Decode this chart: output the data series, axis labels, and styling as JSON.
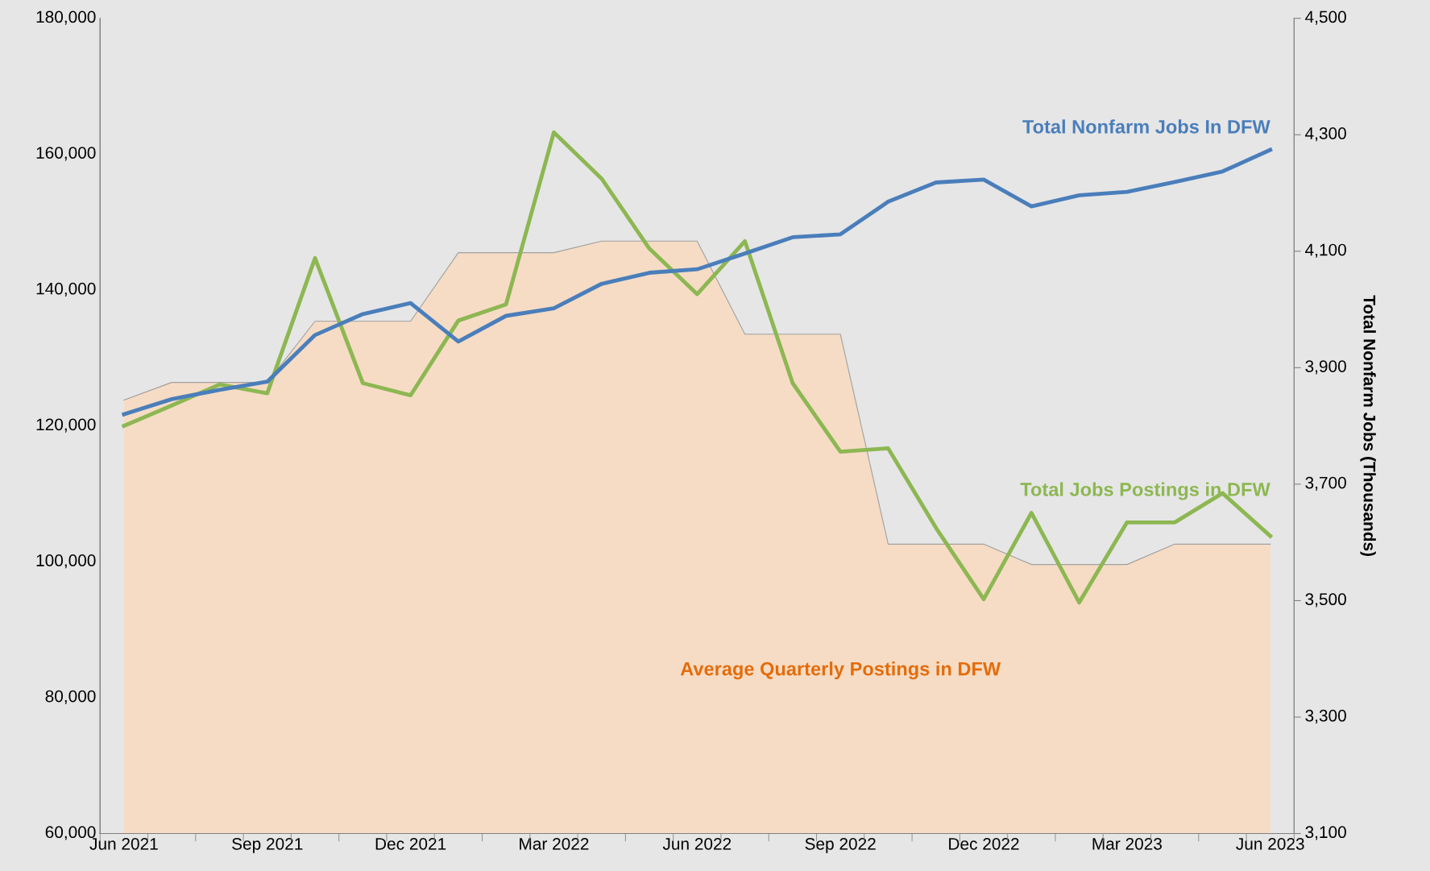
{
  "chart_data": {
    "type": "line",
    "y2label": "Total Nonfarm Jobs (Thousands)",
    "categories": [
      "Jun 2021",
      null,
      null,
      "Sep 2021",
      null,
      null,
      "Dec 2021",
      null,
      null,
      "Mar 2022",
      null,
      null,
      "Jun 2022",
      null,
      null,
      "Sep 2022",
      null,
      null,
      "Dec 2022",
      null,
      null,
      "Mar 2023",
      null,
      null,
      "Jun 2023"
    ],
    "series": [
      {
        "name": "Average Quarterly Postings in DFW",
        "type": "area",
        "color": "#f6dcc5",
        "values": [
          123800,
          126400,
          126400,
          126400,
          135400,
          135400,
          135400,
          145500,
          145500,
          145500,
          147200,
          147200,
          147200,
          133500,
          133500,
          133500,
          102600,
          102600,
          102600,
          99600,
          99600,
          99600,
          102600,
          102600,
          102600
        ]
      },
      {
        "name": "Total Jobs Postings in DFW",
        "color": "#8db752",
        "values": [
          120000,
          123000,
          126100,
          124800,
          144700,
          126300,
          124500,
          135500,
          137900,
          163200,
          156400,
          146100,
          139400,
          147200,
          126300,
          116200,
          116700,
          105000,
          94500,
          107200,
          94000,
          105800,
          105800,
          110100,
          103800
        ]
      },
      {
        "name": "Total Nonfarm Jobs In DFW",
        "axis": "y2",
        "color": "#4a7ebb",
        "values": [
          3820,
          3846,
          3862,
          3876,
          3956,
          3992,
          4011,
          3945,
          3989,
          4002,
          4044,
          4063,
          4069,
          4096,
          4124,
          4129,
          4185,
          4218,
          4223,
          4177,
          4196,
          4202,
          4219,
          4237,
          4274
        ]
      }
    ],
    "ylim": [
      60000,
      180000
    ],
    "yticks": [
      {
        "value": 60000,
        "label": "60,000"
      },
      {
        "value": 80000,
        "label": "80,000"
      },
      {
        "value": 100000,
        "label": "100,000"
      },
      {
        "value": 120000,
        "label": "120,000"
      },
      {
        "value": 140000,
        "label": "140,000"
      },
      {
        "value": 160000,
        "label": "160,000"
      },
      {
        "value": 180000,
        "label": "180,000"
      }
    ],
    "y2lim": [
      3100,
      4500
    ],
    "y2ticks": [
      {
        "value": 3100,
        "label": "3,100"
      },
      {
        "value": 3300,
        "label": "3,300"
      },
      {
        "value": 3500,
        "label": "3,500"
      },
      {
        "value": 3700,
        "label": "3,700"
      },
      {
        "value": 3900,
        "label": "3,900"
      },
      {
        "value": 4100,
        "label": "4,100"
      },
      {
        "value": 4300,
        "label": "4,300"
      },
      {
        "value": 4500,
        "label": "4,500"
      }
    ],
    "grid": false,
    "legend": false,
    "line_style": "solid",
    "marker": "none"
  }
}
